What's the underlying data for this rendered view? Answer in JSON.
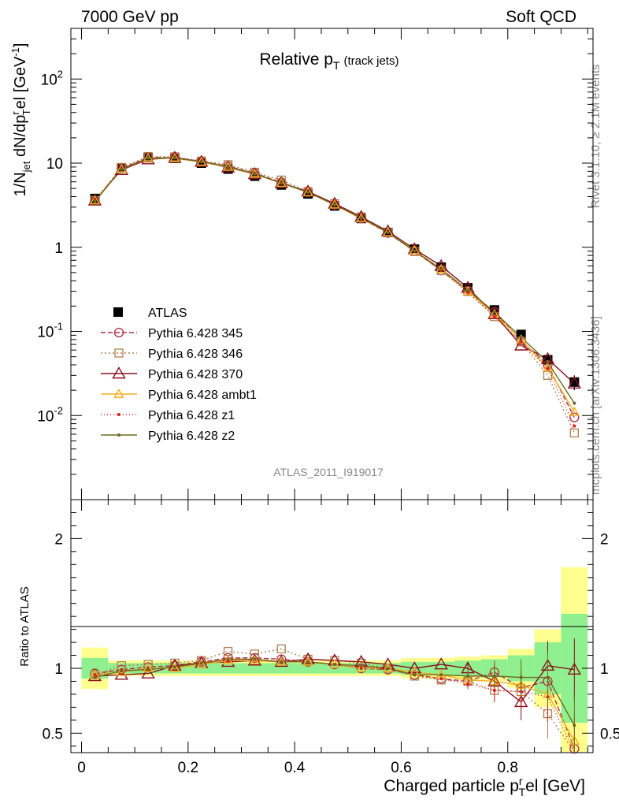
{
  "header": {
    "left": "7000 GeV pp",
    "right": "Soft QCD"
  },
  "side_labels": {
    "top": "Rivet 3.1.10, ≥ 2.1M events",
    "bottom": "mcplots.cern.ch [arXiv:1306.3436]"
  },
  "analysis_id": "ATLAS_2011_I919017",
  "colors": {
    "data": "#000000",
    "p345": "#b03040",
    "p346": "#b08050",
    "p370": "#8b1020",
    "ambt1": "#f0b020",
    "z1": "#e02020",
    "z2": "#6b6b20",
    "band_inner": "#90f090",
    "band_outer": "#ffff90"
  },
  "chart_data": [
    {
      "type": "line",
      "panel": "main",
      "title": "Relative p_T (track jets)",
      "title_main": "Relative p",
      "title_sub": "T",
      "title_paren": "(track jets)",
      "ylabel": "1/N_jet dN/dp_T^rel [GeV^-1]",
      "yscale": "log",
      "ylim": [
        0.001,
        400
      ],
      "xlim": [
        -0.02,
        0.96
      ],
      "ytick_labels": [
        "10^-2",
        "10^-1",
        "1",
        "10",
        "10^2"
      ],
      "legend_position": "left-center",
      "x": [
        0.025,
        0.075,
        0.125,
        0.175,
        0.225,
        0.275,
        0.325,
        0.375,
        0.425,
        0.475,
        0.525,
        0.575,
        0.625,
        0.675,
        0.725,
        0.775,
        0.825,
        0.875,
        0.925
      ],
      "series": [
        {
          "name": "ATLAS",
          "key": "data",
          "marker": "square-filled",
          "values": [
            3.8,
            8.7,
            11.6,
            11.4,
            10.0,
            8.5,
            7.0,
            5.5,
            4.3,
            3.1,
            2.2,
            1.5,
            0.95,
            0.58,
            0.33,
            0.18,
            0.092,
            0.046,
            0.025
          ],
          "errors": [
            0.15,
            0.3,
            0.35,
            0.35,
            0.3,
            0.25,
            0.2,
            0.18,
            0.15,
            0.1,
            0.08,
            0.06,
            0.04,
            0.03,
            0.02,
            0.012,
            0.007,
            0.006,
            0.005
          ]
        },
        {
          "name": "Pythia 6.428 345",
          "key": "p345",
          "marker": "circle-open",
          "dash": "6,3",
          "values": [
            3.6,
            8.6,
            11.7,
            11.6,
            10.5,
            9.2,
            7.6,
            5.9,
            4.5,
            3.2,
            2.2,
            1.48,
            0.9,
            0.53,
            0.3,
            0.17,
            0.078,
            0.04,
            0.0095
          ]
        },
        {
          "name": "Pythia 6.428 346",
          "key": "p346",
          "marker": "square-open",
          "dash": "2,3",
          "values": [
            3.6,
            8.9,
            12.0,
            11.9,
            10.6,
            9.6,
            7.8,
            6.3,
            4.6,
            3.3,
            2.3,
            1.5,
            0.89,
            0.53,
            0.3,
            0.15,
            0.075,
            0.03,
            0.0062
          ]
        },
        {
          "name": "Pythia 6.428 370",
          "key": "p370",
          "marker": "triangle-open",
          "dash": "",
          "values": [
            3.6,
            8.3,
            11.1,
            11.6,
            10.4,
            8.9,
            7.4,
            5.8,
            4.6,
            3.3,
            2.3,
            1.55,
            0.95,
            0.6,
            0.33,
            0.16,
            0.068,
            0.047,
            0.024
          ]
        },
        {
          "name": "Pythia 6.428 ambt1",
          "key": "ambt1",
          "marker": "triangle-open-small",
          "dash": "",
          "values": [
            3.6,
            8.5,
            11.4,
            11.4,
            10.3,
            9.0,
            7.4,
            5.8,
            4.5,
            3.2,
            2.2,
            1.5,
            0.92,
            0.55,
            0.3,
            0.16,
            0.08,
            0.037,
            0.011
          ]
        },
        {
          "name": "Pythia 6.428 z1",
          "key": "z1",
          "marker": "dot",
          "dash": "1,3",
          "values": [
            3.6,
            8.6,
            11.5,
            11.5,
            10.4,
            9.0,
            7.5,
            5.8,
            4.5,
            3.2,
            2.2,
            1.5,
            0.9,
            0.53,
            0.29,
            0.15,
            0.075,
            0.036,
            0.0075
          ]
        },
        {
          "name": "Pythia 6.428 z2",
          "key": "z2",
          "marker": "dot",
          "dash": "",
          "values": [
            3.5,
            8.5,
            11.5,
            11.5,
            10.4,
            9.1,
            7.5,
            5.8,
            4.5,
            3.2,
            2.25,
            1.5,
            0.9,
            0.55,
            0.31,
            0.17,
            0.085,
            0.043,
            0.014
          ]
        }
      ]
    },
    {
      "type": "line",
      "panel": "ratio",
      "xlabel": "Charged particle p_T^rel [GeV]",
      "ylabel": "Ratio to ATLAS",
      "ylim": [
        0.35,
        2.3
      ],
      "xlim": [
        -0.02,
        0.96
      ],
      "xtick_labels": [
        "0",
        "0.2",
        "0.4",
        "0.6",
        "0.8"
      ],
      "ytick_labels": [
        "0.5",
        "1",
        "2"
      ],
      "band_inner": [
        [
          0.92,
          1.08
        ],
        [
          0.96,
          1.04
        ],
        [
          0.96,
          1.04
        ],
        [
          0.96,
          1.04
        ],
        [
          0.96,
          1.04
        ],
        [
          0.96,
          1.04
        ],
        [
          0.96,
          1.04
        ],
        [
          0.96,
          1.04
        ],
        [
          0.96,
          1.04
        ],
        [
          0.96,
          1.04
        ],
        [
          0.96,
          1.04
        ],
        [
          0.96,
          1.04
        ],
        [
          0.95,
          1.05
        ],
        [
          0.95,
          1.05
        ],
        [
          0.94,
          1.06
        ],
        [
          0.93,
          1.07
        ],
        [
          0.9,
          1.1
        ],
        [
          0.8,
          1.2
        ],
        [
          0.58,
          1.42
        ]
      ],
      "band_outer": [
        [
          0.84,
          1.16
        ],
        [
          0.94,
          1.06
        ],
        [
          0.94,
          1.06
        ],
        [
          0.94,
          1.06
        ],
        [
          0.94,
          1.06
        ],
        [
          0.94,
          1.06
        ],
        [
          0.94,
          1.06
        ],
        [
          0.94,
          1.06
        ],
        [
          0.94,
          1.06
        ],
        [
          0.94,
          1.06
        ],
        [
          0.94,
          1.06
        ],
        [
          0.94,
          1.06
        ],
        [
          0.92,
          1.08
        ],
        [
          0.92,
          1.08
        ],
        [
          0.91,
          1.09
        ],
        [
          0.9,
          1.1
        ],
        [
          0.85,
          1.15
        ],
        [
          0.7,
          1.3
        ],
        [
          0.3,
          1.78
        ]
      ],
      "series": [
        {
          "name": "Pythia 6.428 345",
          "key": "p345",
          "marker": "circle-open",
          "dash": "6,3",
          "values": [
            0.96,
            0.99,
            1.01,
            1.02,
            1.05,
            1.08,
            1.08,
            1.07,
            1.05,
            1.03,
            1.0,
            0.99,
            0.95,
            0.92,
            0.9,
            0.97,
            0.85,
            0.9,
            0.38
          ]
        },
        {
          "name": "Pythia 6.428 346",
          "key": "p346",
          "marker": "square-open",
          "dash": "2,3",
          "values": [
            0.95,
            1.02,
            1.03,
            1.04,
            1.06,
            1.13,
            1.11,
            1.15,
            1.07,
            1.06,
            1.04,
            1.0,
            0.94,
            0.91,
            0.9,
            0.83,
            0.82,
            0.65,
            0.25
          ]
        },
        {
          "name": "Pythia 6.428 370",
          "key": "p370",
          "marker": "triangle-open",
          "dash": "",
          "values": [
            0.94,
            0.95,
            0.96,
            1.02,
            1.04,
            1.05,
            1.06,
            1.05,
            1.07,
            1.06,
            1.05,
            1.03,
            1.0,
            1.03,
            1.0,
            0.9,
            0.74,
            1.02,
            0.99
          ]
        },
        {
          "name": "Pythia 6.428 ambt1",
          "key": "ambt1",
          "marker": "triangle-open-small",
          "dash": "",
          "values": [
            0.95,
            0.97,
            1.0,
            1.0,
            1.03,
            1.06,
            1.06,
            1.05,
            1.05,
            1.03,
            1.0,
            1.0,
            0.97,
            0.95,
            0.91,
            0.9,
            0.87,
            0.8,
            0.44
          ]
        },
        {
          "name": "Pythia 6.428 z1",
          "key": "z1",
          "marker": "dot",
          "dash": "1,3",
          "values": [
            0.95,
            0.99,
            0.99,
            1.01,
            1.04,
            1.06,
            1.07,
            1.05,
            1.05,
            1.03,
            1.0,
            1.0,
            0.95,
            0.92,
            0.88,
            0.83,
            0.82,
            0.78,
            0.3
          ]
        },
        {
          "name": "Pythia 6.428 z2",
          "key": "z2",
          "marker": "dot",
          "dash": "",
          "values": [
            0.93,
            0.98,
            0.99,
            1.01,
            1.04,
            1.07,
            1.07,
            1.05,
            1.05,
            1.03,
            1.02,
            1.0,
            0.95,
            0.95,
            0.94,
            0.94,
            0.93,
            0.93,
            0.56
          ]
        }
      ]
    }
  ]
}
